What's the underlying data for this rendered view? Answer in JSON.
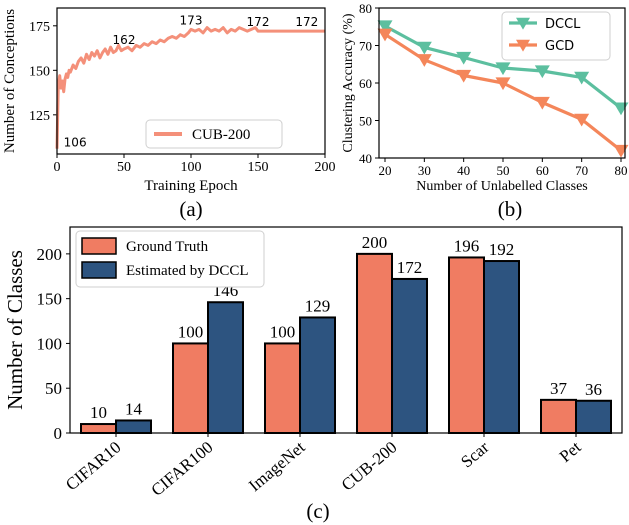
{
  "colors": {
    "cub_line": "#f4907a",
    "dccl": "#5cbf9f",
    "gcd": "#f4865a",
    "ground_truth": "#f07c62",
    "estimated": "#2d5480"
  },
  "panel_labels": [
    "(a)",
    "(b)",
    "(c)"
  ],
  "chart_data": [
    {
      "type": "line",
      "xlabel": "Training Epoch",
      "ylabel": "Number of Conceptions",
      "xlim": [
        0,
        200
      ],
      "ylim": [
        103,
        185
      ],
      "xticks": [
        0,
        50,
        100,
        150,
        200
      ],
      "yticks": [
        125,
        150,
        175
      ],
      "legend": {
        "placement": "bottom-right",
        "entries": [
          "CUB-200"
        ]
      },
      "annotations": [
        {
          "x": 2,
          "y": 106,
          "text": "106"
        },
        {
          "x": 50,
          "y": 162,
          "text": "162"
        },
        {
          "x": 100,
          "y": 173,
          "text": "173"
        },
        {
          "x": 150,
          "y": 172,
          "text": "172"
        },
        {
          "x": 195,
          "y": 172,
          "text": "172"
        }
      ],
      "series": [
        {
          "name": "CUB-200",
          "x": [
            0,
            1,
            2,
            3,
            4,
            5,
            6,
            7,
            8,
            9,
            10,
            12,
            14,
            16,
            18,
            20,
            22,
            24,
            26,
            28,
            30,
            32,
            34,
            36,
            38,
            40,
            42,
            44,
            46,
            48,
            50,
            53,
            56,
            59,
            62,
            65,
            68,
            71,
            74,
            77,
            80,
            83,
            86,
            89,
            92,
            95,
            98,
            100,
            103,
            106,
            109,
            112,
            115,
            118,
            121,
            124,
            127,
            130,
            133,
            136,
            139,
            142,
            145,
            148,
            150,
            155,
            160,
            170,
            180,
            190,
            200
          ],
          "y": [
            106,
            142,
            147,
            140,
            144,
            138,
            145,
            148,
            146,
            150,
            149,
            153,
            151,
            155,
            157,
            154,
            159,
            156,
            160,
            158,
            161,
            157,
            160,
            162,
            159,
            163,
            160,
            161,
            164,
            161,
            162,
            163,
            161,
            164,
            163,
            165,
            164,
            166,
            165,
            167,
            166,
            168,
            169,
            168,
            170,
            169,
            171,
            173,
            172,
            173,
            171,
            174,
            172,
            173,
            172,
            174,
            171,
            173,
            172,
            174,
            173,
            172,
            173,
            174,
            172,
            172,
            172,
            172,
            172,
            172,
            172
          ]
        }
      ]
    },
    {
      "type": "line",
      "xlabel": "Number of Unlabelled Classes",
      "ylabel": "Clustering Accuracy (%)",
      "ylim": [
        40,
        80
      ],
      "yticks": [
        40,
        50,
        60,
        70,
        80
      ],
      "categories": [
        "20",
        "30",
        "40",
        "50",
        "60",
        "70",
        "80"
      ],
      "legend": {
        "placement": "top-right",
        "entries": [
          "DCCL",
          "GCD"
        ]
      },
      "series": [
        {
          "name": "DCCL",
          "values": [
            75.2,
            69.5,
            66.8,
            64.0,
            63.2,
            61.5,
            53.3
          ]
        },
        {
          "name": "GCD",
          "values": [
            73.0,
            66.2,
            62.0,
            60.0,
            54.8,
            50.3,
            42.0
          ]
        }
      ]
    },
    {
      "type": "bar",
      "ylabel": "Number of Classes",
      "ylim": [
        0,
        230
      ],
      "yticks": [
        0,
        50,
        100,
        150,
        200
      ],
      "categories": [
        "CIFAR10",
        "CIFAR100",
        "ImageNet",
        "CUB-200",
        "Scar",
        "Pet"
      ],
      "legend": {
        "placement": "top-left",
        "entries": [
          "Ground Truth",
          "Estimated by DCCL"
        ]
      },
      "series": [
        {
          "name": "Ground Truth",
          "values": [
            10,
            100,
            100,
            200,
            196,
            37
          ]
        },
        {
          "name": "Estimated by DCCL",
          "values": [
            14,
            146,
            129,
            172,
            192,
            36
          ]
        }
      ]
    }
  ]
}
